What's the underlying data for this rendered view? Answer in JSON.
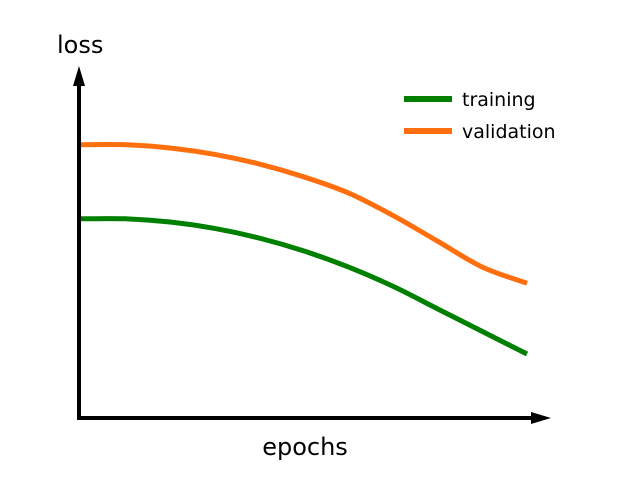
{
  "chart_data": {
    "type": "line",
    "title": "",
    "xlabel": "epochs",
    "ylabel": "loss",
    "grid": false,
    "legend_placement": "top-right",
    "xlim": [
      0,
      1
    ],
    "ylim": [
      0,
      1
    ],
    "series": [
      {
        "name": "training",
        "color": "#008000",
        "x": [
          0.0,
          0.1,
          0.2,
          0.3,
          0.4,
          0.5,
          0.6,
          0.7,
          0.8,
          0.9,
          1.0
        ],
        "y": [
          0.6,
          0.6,
          0.59,
          0.57,
          0.54,
          0.5,
          0.45,
          0.39,
          0.32,
          0.25,
          0.18
        ]
      },
      {
        "name": "validation",
        "color": "#ff6f0e",
        "x": [
          0.0,
          0.1,
          0.2,
          0.3,
          0.4,
          0.5,
          0.6,
          0.7,
          0.8,
          0.9,
          1.0
        ],
        "y": [
          0.83,
          0.83,
          0.82,
          0.8,
          0.77,
          0.73,
          0.68,
          0.61,
          0.53,
          0.45,
          0.4
        ]
      }
    ]
  }
}
